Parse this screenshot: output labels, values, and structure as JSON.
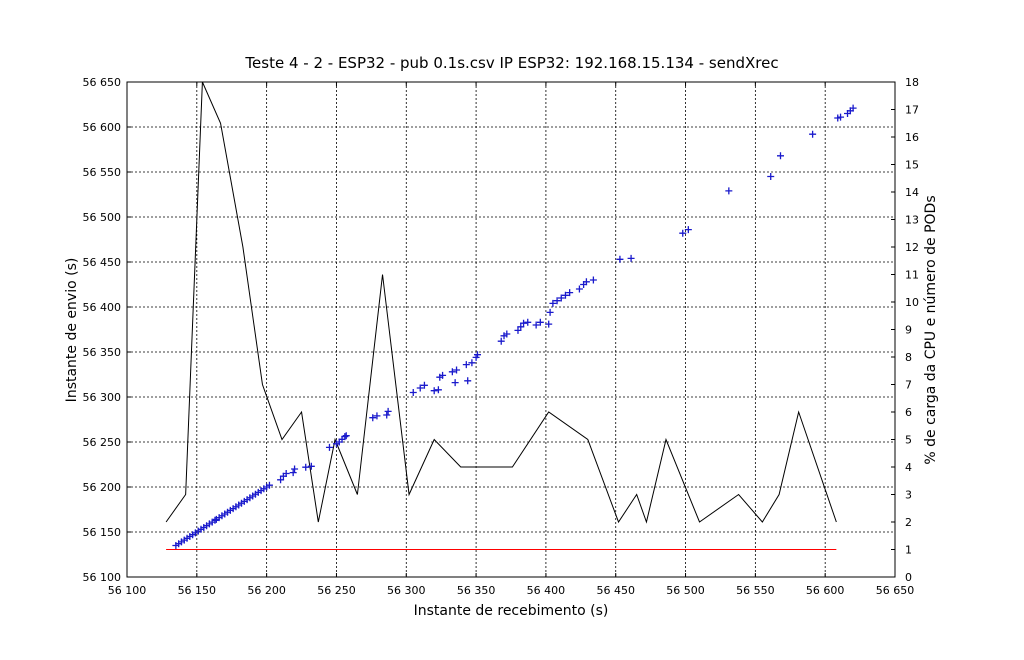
{
  "chart_data": {
    "type": "scatter",
    "title": "Teste 4 - 2 - ESP32 - pub 0.1s.csv IP ESP32: 192.168.15.134 - sendXrec",
    "xlabel": "Instante de recebimento (s)",
    "ylabel": "Instante de envio (s)",
    "y2label": "% de carga da CPU  e número de PODs",
    "xlim": [
      56100,
      56650
    ],
    "ylim": [
      56100,
      56650
    ],
    "y2lim": [
      0,
      18
    ],
    "grid": true,
    "x_ticks": [
      56100,
      56150,
      56200,
      56250,
      56300,
      56350,
      56400,
      56450,
      56500,
      56550,
      56600,
      56650
    ],
    "x_tick_labels": [
      "56 100",
      "56 150",
      "56 200",
      "56 250",
      "56 300",
      "56 350",
      "56 400",
      "56 450",
      "56 500",
      "56 550",
      "56 600",
      "56 650"
    ],
    "y_ticks": [
      56100,
      56150,
      56200,
      56250,
      56300,
      56350,
      56400,
      56450,
      56500,
      56550,
      56600,
      56650
    ],
    "y_tick_labels": [
      "56 100",
      "56 150",
      "56 200",
      "56 250",
      "56 300",
      "56 350",
      "56 400",
      "56 450",
      "56 500",
      "56 550",
      "56 600",
      "56 650"
    ],
    "y2_ticks": [
      0,
      1,
      2,
      3,
      4,
      5,
      6,
      7,
      8,
      9,
      10,
      11,
      12,
      13,
      14,
      15,
      16,
      17,
      18
    ],
    "y2_tick_labels": [
      "0",
      "1",
      "2",
      "3",
      "4",
      "5",
      "6",
      "7",
      "8",
      "9",
      "10",
      "11",
      "12",
      "13",
      "14",
      "15",
      "16",
      "17",
      "18"
    ],
    "series": [
      {
        "axis": "left",
        "marker": "+",
        "color": "#1a1acc",
        "points": [
          [
            56135,
            56135
          ],
          [
            56137,
            56137
          ],
          [
            56139,
            56139
          ],
          [
            56141,
            56141
          ],
          [
            56143,
            56143
          ],
          [
            56145,
            56145
          ],
          [
            56147,
            56147
          ],
          [
            56149,
            56149
          ],
          [
            56151,
            56151
          ],
          [
            56153,
            56153
          ],
          [
            56155,
            56155
          ],
          [
            56157,
            56157
          ],
          [
            56159,
            56159
          ],
          [
            56161,
            56161
          ],
          [
            56163,
            56163
          ],
          [
            56164,
            56164
          ],
          [
            56166,
            56166
          ],
          [
            56168,
            56168
          ],
          [
            56170,
            56170
          ],
          [
            56172,
            56172
          ],
          [
            56174,
            56174
          ],
          [
            56176,
            56176
          ],
          [
            56178,
            56178
          ],
          [
            56180,
            56180
          ],
          [
            56182,
            56182
          ],
          [
            56184,
            56184
          ],
          [
            56186,
            56186
          ],
          [
            56188,
            56188
          ],
          [
            56190,
            56190
          ],
          [
            56192,
            56192
          ],
          [
            56194,
            56194
          ],
          [
            56196,
            56196
          ],
          [
            56198,
            56198
          ],
          [
            56200,
            56200
          ],
          [
            56202,
            56202
          ],
          [
            56210,
            56208
          ],
          [
            56212,
            56212
          ],
          [
            56214,
            56215
          ],
          [
            56219,
            56216
          ],
          [
            56220,
            56220
          ],
          [
            56228,
            56222
          ],
          [
            56232,
            56223
          ],
          [
            56245,
            56244
          ],
          [
            56250,
            56248
          ],
          [
            56252,
            56250
          ],
          [
            56254,
            56253
          ],
          [
            56256,
            56256
          ],
          [
            56257,
            56257
          ],
          [
            56276,
            56277
          ],
          [
            56279,
            56279
          ],
          [
            56286,
            56280
          ],
          [
            56287,
            56284
          ],
          [
            56305,
            56305
          ],
          [
            56310,
            56310
          ],
          [
            56313,
            56313
          ],
          [
            56320,
            56307
          ],
          [
            56323,
            56308
          ],
          [
            56324,
            56322
          ],
          [
            56326,
            56324
          ],
          [
            56333,
            56328
          ],
          [
            56336,
            56330
          ],
          [
            56335,
            56316
          ],
          [
            56344,
            56318
          ],
          [
            56343,
            56336
          ],
          [
            56347,
            56338
          ],
          [
            56350,
            56344
          ],
          [
            56351,
            56347
          ],
          [
            56368,
            56362
          ],
          [
            56370,
            56368
          ],
          [
            56372,
            56370
          ],
          [
            56380,
            56374
          ],
          [
            56382,
            56378
          ],
          [
            56384,
            56382
          ],
          [
            56387,
            56383
          ],
          [
            56393,
            56380
          ],
          [
            56396,
            56383
          ],
          [
            56402,
            56381
          ],
          [
            56403,
            56394
          ],
          [
            56405,
            56404
          ],
          [
            56408,
            56407
          ],
          [
            56411,
            56410
          ],
          [
            56414,
            56413
          ],
          [
            56417,
            56416
          ],
          [
            56424,
            56420
          ],
          [
            56427,
            56425
          ],
          [
            56429,
            56428
          ],
          [
            56434,
            56430
          ],
          [
            56453,
            56453
          ],
          [
            56461,
            56454
          ],
          [
            56498,
            56482
          ],
          [
            56502,
            56486
          ],
          [
            56531,
            56529
          ],
          [
            56561,
            56545
          ],
          [
            56568,
            56568
          ],
          [
            56591,
            56592
          ],
          [
            56609,
            56610
          ],
          [
            56611,
            56611
          ],
          [
            56616,
            56615
          ],
          [
            56618,
            56618
          ],
          [
            56620,
            56621
          ]
        ]
      },
      {
        "axis": "right",
        "type": "line",
        "color": "#000000",
        "points": [
          [
            56128,
            2
          ],
          [
            56142,
            3
          ],
          [
            56150,
            13
          ],
          [
            56154,
            18
          ],
          [
            56167,
            16.5
          ],
          [
            56183,
            12
          ],
          [
            56197,
            7
          ],
          [
            56211,
            5
          ],
          [
            56225,
            6
          ],
          [
            56237,
            2
          ],
          [
            56249,
            5
          ],
          [
            56265,
            3
          ],
          [
            56283,
            11
          ],
          [
            56302,
            3
          ],
          [
            56320,
            5
          ],
          [
            56339,
            4
          ],
          [
            56376,
            4
          ],
          [
            56402,
            6
          ],
          [
            56430,
            5
          ],
          [
            56452,
            2
          ],
          [
            56465,
            3
          ],
          [
            56472,
            2
          ],
          [
            56486,
            5
          ],
          [
            56510,
            2
          ],
          [
            56538,
            3
          ],
          [
            56555,
            2
          ],
          [
            56567,
            3
          ],
          [
            56581,
            6
          ],
          [
            56608,
            2
          ]
        ]
      },
      {
        "axis": "right",
        "type": "line",
        "color": "#ff0000",
        "points": [
          [
            56128,
            1
          ],
          [
            56608,
            1
          ]
        ]
      }
    ]
  }
}
